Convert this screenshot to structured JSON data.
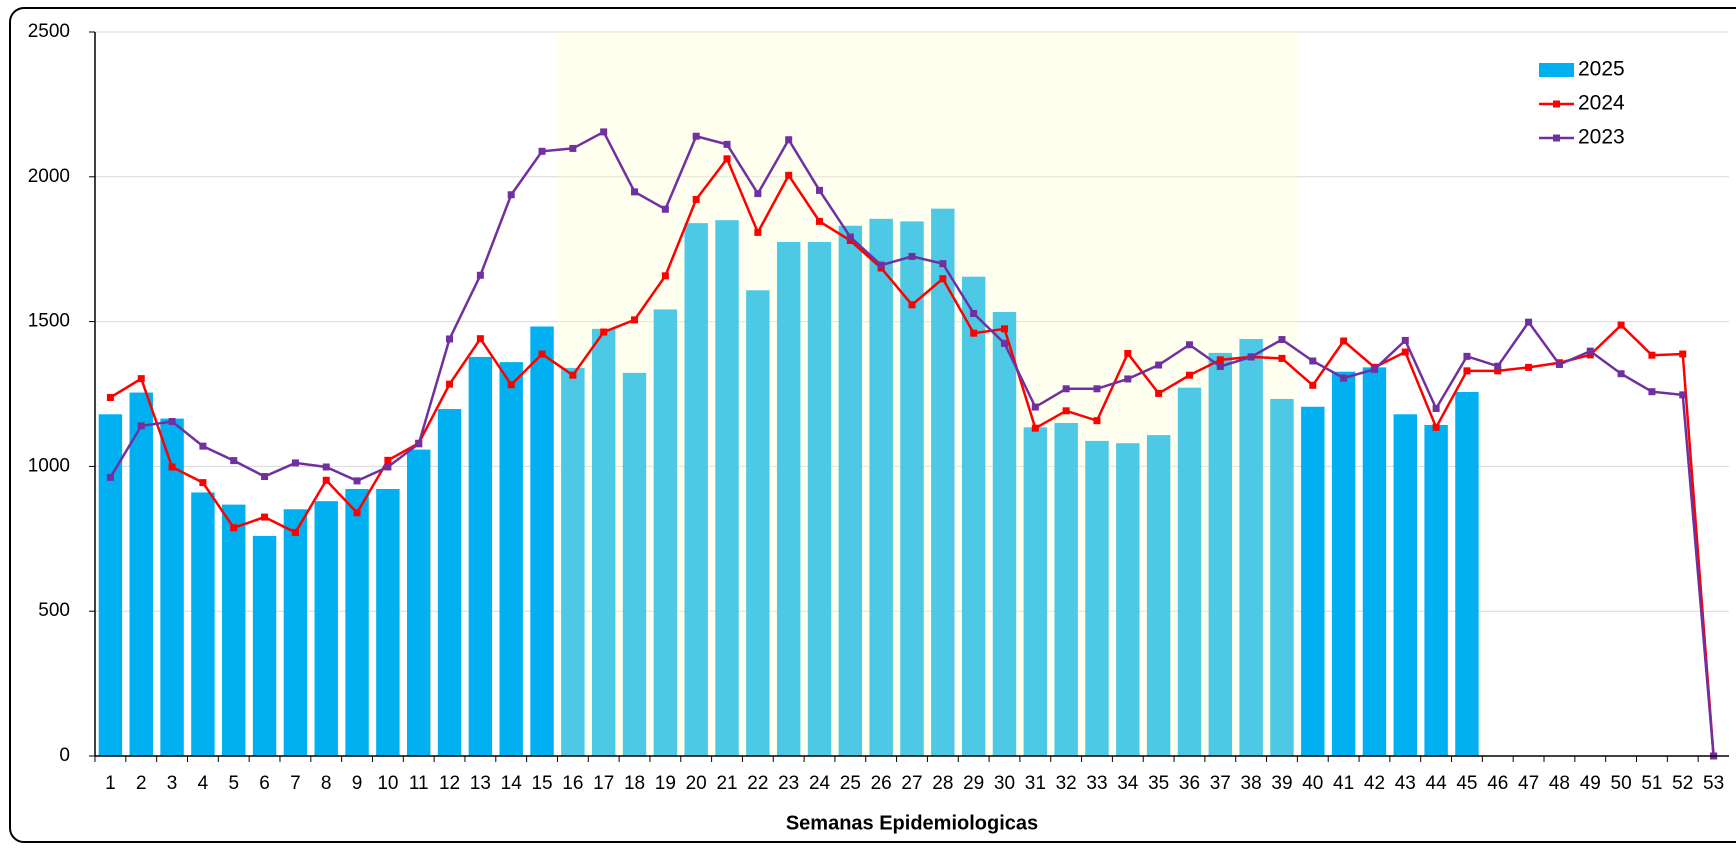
{
  "chart_data": {
    "type": "bar_line",
    "x_label": "Semanas Epidemiologicas",
    "categories": [
      "1",
      "2",
      "3",
      "4",
      "5",
      "6",
      "7",
      "8",
      "9",
      "10",
      "11",
      "12",
      "13",
      "14",
      "15",
      "16",
      "17",
      "18",
      "19",
      "20",
      "21",
      "22",
      "23",
      "24",
      "25",
      "26",
      "27",
      "28",
      "29",
      "30",
      "31",
      "32",
      "33",
      "34",
      "35",
      "36",
      "37",
      "38",
      "39",
      "40",
      "41",
      "42",
      "43",
      "44",
      "45",
      "46",
      "47",
      "48",
      "49",
      "50",
      "51",
      "52",
      "53"
    ],
    "highlight_categories": [
      "16",
      "39"
    ],
    "highlight_color": "#ffffcc",
    "series": [
      {
        "name": "2025",
        "type": "bar",
        "color": "#00b0f0",
        "values": [
          1180,
          1255,
          1165,
          910,
          868,
          760,
          852,
          880,
          922,
          922,
          1058,
          1198,
          1378,
          1360,
          1483,
          1340,
          1475,
          1323,
          1542,
          1840,
          1850,
          1608,
          1775,
          1775,
          1831,
          1855,
          1846,
          1890,
          1655,
          1533,
          1135,
          1150,
          1088,
          1080,
          1108,
          1272,
          1392,
          1440,
          1233,
          1206,
          1327,
          1342,
          1180,
          1143,
          1257,
          null,
          null,
          null,
          null,
          null,
          null,
          null,
          null
        ]
      },
      {
        "name": "2024",
        "type": "line",
        "color": "#ff0000",
        "values": [
          1238,
          1303,
          998,
          944,
          788,
          825,
          772,
          952,
          840,
          1021,
          1080,
          1284,
          1441,
          1282,
          1388,
          1315,
          1464,
          1506,
          1658,
          1922,
          2062,
          1808,
          2005,
          1846,
          1780,
          1685,
          1558,
          1648,
          1460,
          1475,
          1132,
          1192,
          1158,
          1390,
          1252,
          1315,
          1368,
          1378,
          1373,
          1280,
          1433,
          1342,
          1395,
          1135,
          1330,
          1330,
          1342,
          1358,
          1385,
          1488,
          1384,
          1388,
          0
        ]
      },
      {
        "name": "2023",
        "type": "line",
        "color": "#7030a0",
        "values": [
          962,
          1140,
          1155,
          1070,
          1020,
          965,
          1012,
          998,
          950,
          998,
          1078,
          1440,
          1660,
          1938,
          2088,
          2098,
          2155,
          1948,
          1888,
          2140,
          2112,
          1942,
          2128,
          1953,
          1792,
          1695,
          1725,
          1700,
          1528,
          1425,
          1205,
          1268,
          1268,
          1302,
          1350,
          1420,
          1345,
          1378,
          1438,
          1364,
          1305,
          1335,
          1435,
          1200,
          1380,
          1346,
          1498,
          1352,
          1398,
          1320,
          1258,
          1247,
          0
        ]
      }
    ],
    "ylim": [
      0,
      2500
    ],
    "yticks": [
      0,
      500,
      1000,
      1500,
      2000,
      2500
    ],
    "grid": true,
    "legend": "top-right"
  }
}
